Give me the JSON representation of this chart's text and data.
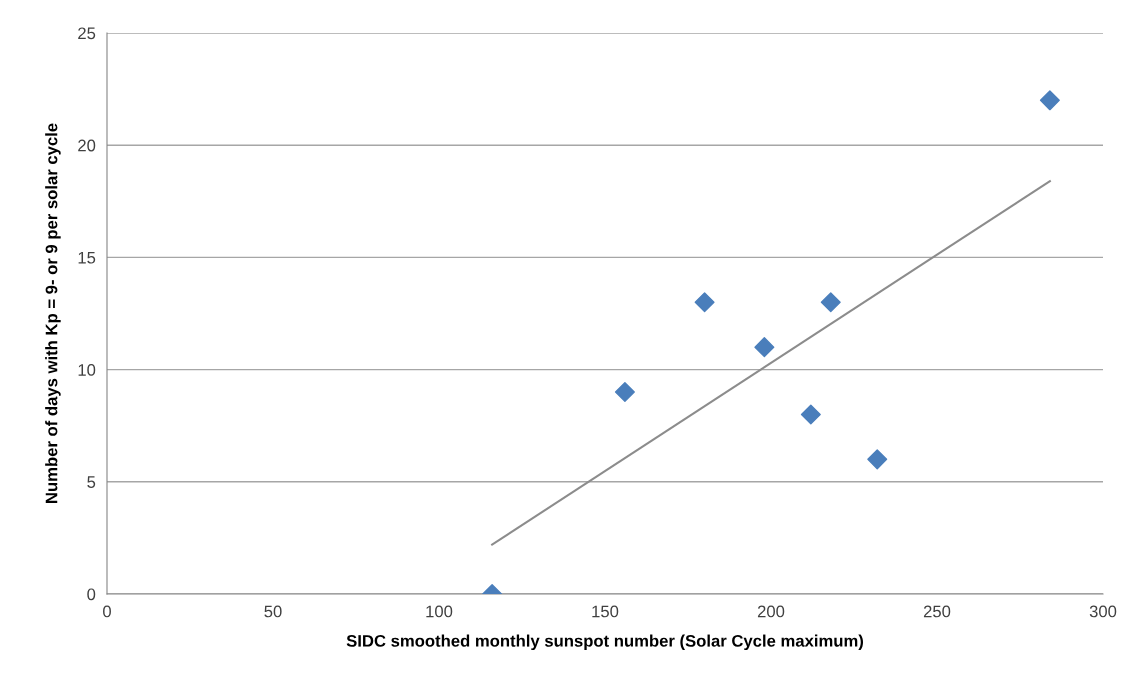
{
  "chart_data": {
    "type": "scatter",
    "xlabel": "SIDC smoothed monthly sunspot number (Solar Cycle maximum)",
    "ylabel": "Number of days with Kp = 9- or 9 per solar cycle",
    "series": [
      {
        "color": "#4a7ebb",
        "marker": "diamond",
        "x": [
          116,
          156,
          180,
          198,
          212,
          218,
          232,
          284
        ],
        "values": [
          0,
          9,
          13,
          11,
          8,
          13,
          6,
          22
        ]
      },
      {
        "type": "line",
        "color": "#8c8c8c",
        "marker": "none",
        "x": [
          116,
          284
        ],
        "values": [
          2.2,
          18.4
        ]
      }
    ],
    "xlim": [
      0,
      300
    ],
    "xticks": [
      0,
      50,
      100,
      150,
      200,
      250,
      300
    ],
    "ylim": [
      0,
      25
    ],
    "yticks": [
      0,
      5,
      10,
      15,
      20,
      25
    ],
    "grid": "y"
  }
}
